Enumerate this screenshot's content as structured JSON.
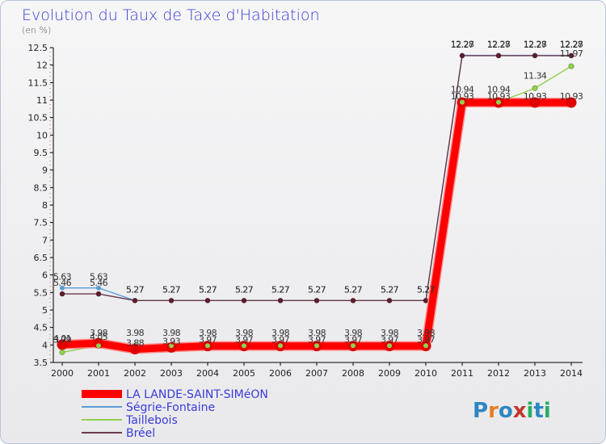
{
  "title": "Evolution du Taux de Taxe d'Habitation",
  "subtitle": "(en %)",
  "logo": {
    "letters": [
      "P",
      "r",
      "o",
      "x",
      "i",
      "t",
      "i"
    ],
    "colors": [
      "#2e86c1",
      "#e67e22",
      "#2e86c1",
      "#c0392b",
      "#27ae60",
      "#2e86c1",
      "#27ae60"
    ]
  },
  "chart_data": {
    "type": "line",
    "x": [
      2000,
      2001,
      2002,
      2003,
      2004,
      2005,
      2006,
      2007,
      2008,
      2009,
      2010,
      2011,
      2012,
      2013,
      2014
    ],
    "ylim": [
      3.5,
      12.5
    ],
    "yticks": [
      3.5,
      4,
      4.5,
      5,
      5.5,
      6,
      6.5,
      7,
      7.5,
      8,
      8.5,
      9,
      9.5,
      10,
      10.5,
      11,
      11.5,
      12,
      12.5
    ],
    "ytick_labels": [
      "3.5",
      "4",
      "4.5",
      "5",
      "5.5",
      "6",
      "6.5",
      "7",
      "7.5",
      "8",
      "8.5",
      "9",
      "9.5",
      "10",
      "10.5",
      "11",
      "11.5",
      "12",
      "12.5"
    ],
    "grid": false,
    "legend_position": "bottom-left",
    "series": [
      {
        "name": "LA LANDE-SAINT-SIMéON",
        "color": "#ff0000",
        "values": [
          4.01,
          4.05,
          3.88,
          3.93,
          3.97,
          3.97,
          3.97,
          3.97,
          3.97,
          3.97,
          3.97,
          10.93,
          10.93,
          10.93,
          10.93
        ],
        "labels": [
          "4.01",
          "4.05",
          "3.88",
          "3.93",
          "3.97",
          "3.97",
          "3.97",
          "3.97",
          "3.97",
          "3.97",
          "3.97",
          "10.93",
          "10.93",
          "10.93",
          "10.93"
        ]
      },
      {
        "name": "Ségrie-Fontaine",
        "color": "#5b9bd5",
        "values": [
          5.63,
          5.63,
          5.27,
          5.27,
          5.27,
          5.27,
          5.27,
          5.27,
          5.27,
          5.27,
          5.27,
          12.28,
          12.28,
          12.28,
          12.28
        ],
        "labels": [
          "5.63",
          "5.63",
          "5.27",
          "5.27",
          "5.27",
          "5.27",
          "5.27",
          "5.27",
          "5.27",
          "5.27",
          "5.27",
          "12.28",
          "12.28",
          "12.28",
          "12.28"
        ]
      },
      {
        "name": "Taillebois",
        "color": "#92d050",
        "values": [
          3.79,
          3.98,
          3.98,
          3.98,
          3.98,
          3.98,
          3.98,
          3.98,
          3.98,
          3.98,
          3.98,
          10.94,
          10.94,
          11.34,
          11.97
        ],
        "labels": [
          "3.79",
          "3.98",
          "3.98",
          "3.98",
          "3.98",
          "3.98",
          "3.98",
          "3.98",
          "3.98",
          "3.98",
          "3.98",
          "10.94",
          "10.94",
          "11.34",
          "11.97"
        ]
      },
      {
        "name": "Bréel",
        "color": "#6b3a4a",
        "values": [
          5.46,
          5.46,
          5.27,
          5.27,
          5.27,
          5.27,
          5.27,
          5.27,
          5.27,
          5.27,
          5.27,
          12.27,
          12.27,
          12.27,
          12.27
        ],
        "labels": [
          "5.46",
          "5.46",
          "5.27",
          "5.27",
          "5.27",
          "5.27",
          "5.27",
          "5.27",
          "5.27",
          "5.27",
          "5.27",
          "12.27",
          "12.27",
          "12.27",
          "12.27"
        ]
      }
    ]
  }
}
